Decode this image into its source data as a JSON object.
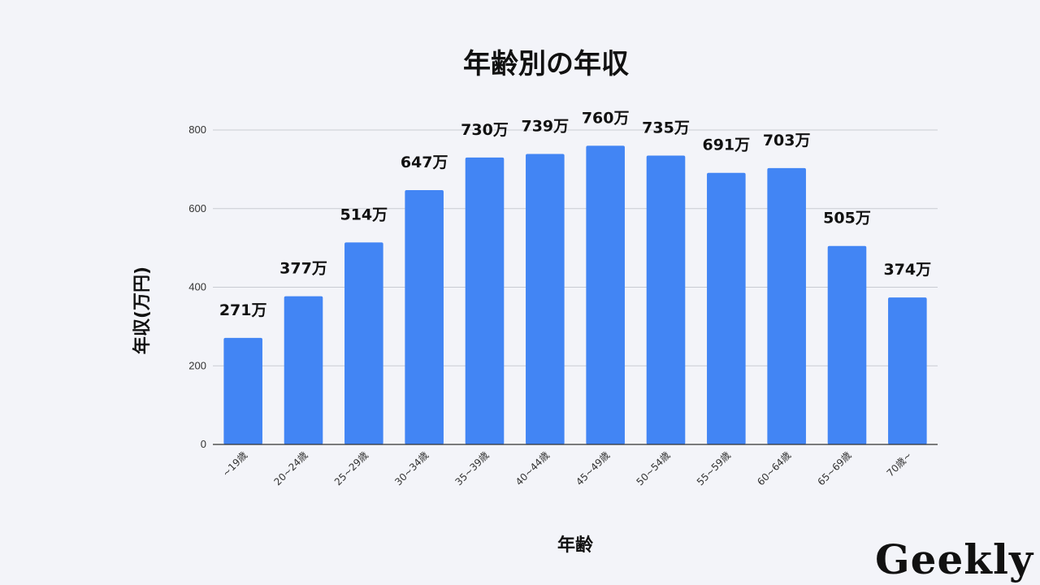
{
  "chart_data": {
    "type": "bar",
    "title": "年齢別の年収",
    "xlabel": "年齢",
    "ylabel": "年収(万円)",
    "categories": [
      "~19歳",
      "20~24歳",
      "25~29歳",
      "30~34歳",
      "35~39歳",
      "40~44歳",
      "45~49歳",
      "50~54歳",
      "55~59歳",
      "60~64歳",
      "65~69歳",
      "70歳~"
    ],
    "values": [
      271,
      377,
      514,
      647,
      730,
      739,
      760,
      735,
      691,
      703,
      505,
      374
    ],
    "data_labels": [
      "271万",
      "377万",
      "514万",
      "647万",
      "730万",
      "739万",
      "760万",
      "735万",
      "691万",
      "703万",
      "505万",
      "374万"
    ],
    "ylim": [
      0,
      800
    ],
    "yticks": [
      0,
      200,
      400,
      600,
      800
    ],
    "grid": true,
    "legend": "none",
    "bar_color": "#4285f4"
  },
  "logo": {
    "text": "Geekly"
  }
}
